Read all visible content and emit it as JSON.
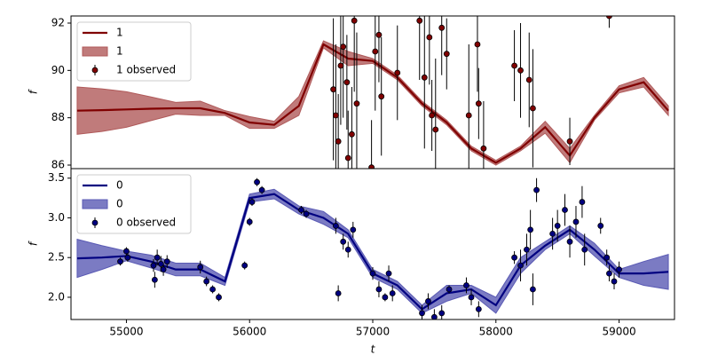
{
  "chart_data": [
    {
      "type": "line",
      "ylabel": "f",
      "xlim": [
        54550,
        59450
      ],
      "ylim": [
        85.85,
        92.3
      ],
      "yticks": [
        86,
        88,
        90,
        92
      ],
      "x": [
        54600,
        54800,
        55000,
        55200,
        55400,
        55600,
        55800,
        56000,
        56200,
        56400,
        56600,
        56800,
        57000,
        57200,
        57400,
        57600,
        57800,
        58000,
        58200,
        58400,
        58600,
        58800,
        59000,
        59200,
        59400
      ],
      "series": [
        {
          "name": "1",
          "color": "#800000",
          "values": [
            88.3,
            88.32,
            88.35,
            88.38,
            88.4,
            88.4,
            88.2,
            87.8,
            87.7,
            88.5,
            91.1,
            90.5,
            90.4,
            89.7,
            88.6,
            87.8,
            86.7,
            86.1,
            86.7,
            87.6,
            86.4,
            88.0,
            89.2,
            89.5,
            88.3
          ]
        }
      ],
      "band": {
        "name": "1",
        "color": "#b05a5a",
        "lower": [
          87.3,
          87.42,
          87.6,
          87.88,
          88.15,
          88.1,
          88.1,
          87.55,
          87.55,
          88.1,
          90.95,
          90.2,
          90.3,
          89.6,
          88.5,
          87.7,
          86.6,
          86.0,
          86.6,
          87.35,
          86.1,
          87.9,
          89.05,
          89.3,
          88.1
        ],
        "upper": [
          89.3,
          89.22,
          89.1,
          88.88,
          88.65,
          88.7,
          88.3,
          88.05,
          87.85,
          88.9,
          91.25,
          90.8,
          90.5,
          89.8,
          88.7,
          87.9,
          86.8,
          86.2,
          86.8,
          87.85,
          86.7,
          88.1,
          89.35,
          89.7,
          88.5
        ]
      },
      "observed": {
        "name": "1 observed",
        "color": "#800000",
        "x": [
          56680,
          56700,
          56720,
          56740,
          56760,
          56790,
          56800,
          56830,
          56850,
          56870,
          56990,
          57020,
          57050,
          57070,
          57200,
          57380,
          57420,
          57460,
          57480,
          57510,
          57560,
          57600,
          57780,
          57850,
          57860,
          57900,
          58150,
          58200,
          58270,
          58300,
          58600,
          58920
        ],
        "values": [
          89.2,
          88.1,
          87.0,
          90.2,
          91.0,
          89.5,
          86.3,
          87.3,
          92.1,
          88.6,
          85.9,
          90.8,
          91.5,
          88.9,
          89.9,
          92.1,
          89.7,
          91.4,
          88.1,
          87.5,
          91.8,
          90.7,
          88.1,
          91.1,
          88.6,
          86.7,
          90.2,
          90.0,
          89.6,
          88.4,
          87.0,
          92.3
        ],
        "errors": [
          3,
          3,
          2,
          2.5,
          3,
          2,
          2,
          2,
          3,
          3,
          2,
          2.5,
          2,
          2.5,
          2,
          2.5,
          3,
          2,
          1.5,
          3,
          2,
          1.5,
          3,
          2,
          1.5,
          2,
          1.5,
          2,
          2,
          2.5,
          1,
          0.5
        ]
      }
    },
    {
      "type": "line",
      "ylabel": "f",
      "xlabel": "t",
      "xlim": [
        54550,
        59450
      ],
      "ylim": [
        1.72,
        3.62
      ],
      "yticks": [
        {
          "value": 2,
          "label": "2.0"
        },
        2.5,
        {
          "value": 3,
          "label": "3.0"
        },
        3.5
      ],
      "xticks": [
        55000,
        56000,
        57000,
        58000,
        59000
      ],
      "x": [
        54600,
        54800,
        55000,
        55200,
        55400,
        55600,
        55800,
        56000,
        56200,
        56400,
        56600,
        56800,
        57000,
        57200,
        57400,
        57600,
        57800,
        58000,
        58200,
        58400,
        58600,
        58800,
        59000,
        59200,
        59400
      ],
      "series": [
        {
          "name": "0",
          "color": "#000080",
          "values": [
            2.49,
            2.5,
            2.52,
            2.45,
            2.35,
            2.35,
            2.2,
            3.25,
            3.3,
            3.1,
            3.0,
            2.8,
            2.3,
            2.15,
            1.85,
            2.05,
            2.1,
            1.9,
            2.4,
            2.65,
            2.85,
            2.6,
            2.3,
            2.3,
            2.32
          ]
        }
      ],
      "band": {
        "name": "0",
        "color": "#5a5ab4",
        "lower": [
          2.25,
          2.35,
          2.46,
          2.37,
          2.27,
          2.27,
          2.15,
          3.2,
          3.24,
          3.05,
          2.92,
          2.75,
          2.25,
          2.1,
          1.8,
          1.95,
          2.05,
          1.8,
          2.3,
          2.6,
          2.8,
          2.52,
          2.25,
          2.15,
          2.1
        ],
        "upper": [
          2.73,
          2.65,
          2.58,
          2.53,
          2.43,
          2.43,
          2.25,
          3.3,
          3.36,
          3.15,
          3.08,
          2.85,
          2.35,
          2.2,
          1.9,
          2.15,
          2.15,
          2.0,
          2.5,
          2.7,
          2.9,
          2.68,
          2.35,
          2.45,
          2.54
        ]
      },
      "observed": {
        "name": "0 observed",
        "color": "#000080",
        "x": [
          54950,
          55000,
          55010,
          55220,
          55250,
          55280,
          55300,
          55330,
          55230,
          55600,
          55650,
          55700,
          55750,
          55960,
          56000,
          56020,
          56060,
          56100,
          56420,
          56460,
          56700,
          56720,
          56760,
          56800,
          56840,
          57000,
          57050,
          57100,
          57130,
          57160,
          57400,
          57450,
          57500,
          57560,
          57620,
          57760,
          57800,
          57860,
          58150,
          58200,
          58250,
          58280,
          58300,
          58330,
          58460,
          58500,
          58560,
          58600,
          58650,
          58700,
          58720,
          58850,
          58900,
          58920,
          58960,
          59000
        ],
        "values": [
          2.45,
          2.58,
          2.5,
          2.4,
          2.5,
          2.42,
          2.35,
          2.45,
          2.22,
          2.38,
          2.2,
          2.1,
          2.0,
          2.4,
          2.95,
          3.2,
          3.45,
          3.35,
          3.1,
          3.05,
          2.9,
          2.05,
          2.7,
          2.6,
          2.85,
          2.3,
          2.1,
          2.0,
          2.3,
          2.05,
          1.8,
          1.95,
          1.75,
          1.8,
          2.1,
          2.15,
          2.0,
          1.85,
          2.5,
          2.4,
          2.6,
          2.85,
          2.1,
          3.35,
          2.8,
          2.9,
          3.1,
          2.7,
          2.95,
          3.2,
          2.6,
          2.9,
          2.5,
          2.3,
          2.2,
          2.35
        ],
        "errors": [
          0.05,
          0.05,
          0.05,
          0.08,
          0.1,
          0.1,
          0.08,
          0.08,
          0.1,
          0.08,
          0.06,
          0.05,
          0.05,
          0.05,
          0.05,
          0.05,
          0.05,
          0.05,
          0.05,
          0.05,
          0.1,
          0.1,
          0.1,
          0.1,
          0.1,
          0.08,
          0.1,
          0.05,
          0.1,
          0.1,
          0.1,
          0.1,
          0.1,
          0.1,
          0.05,
          0.1,
          0.1,
          0.1,
          0.08,
          0.2,
          0.2,
          0.25,
          0.2,
          0.15,
          0.2,
          0.2,
          0.2,
          0.2,
          0.2,
          0.2,
          0.2,
          0.1,
          0.1,
          0.1,
          0.1,
          0.1
        ]
      }
    }
  ]
}
